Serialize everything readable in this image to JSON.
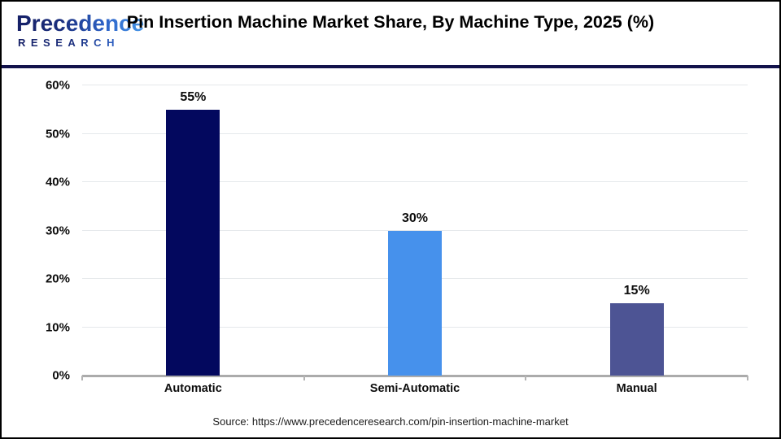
{
  "header": {
    "logo": {
      "name": "Precedence",
      "subname": "RESEARCH"
    },
    "title": "Pin Insertion Machine Market Share, By Machine Type, 2025 (%)"
  },
  "chart_data": {
    "type": "bar",
    "title": "Pin Insertion Machine Market Share, By Machine Type, 2025 (%)",
    "categories": [
      "Automatic",
      "Semi-Automatic",
      "Manual"
    ],
    "values": [
      55,
      30,
      15
    ],
    "value_labels": [
      "55%",
      "30%",
      "15%"
    ],
    "bar_colors": [
      "#03085e",
      "#4691ec",
      "#4d5494"
    ],
    "xlabel": "",
    "ylabel": "",
    "ylim": [
      0,
      60
    ],
    "yticks": [
      0,
      10,
      20,
      30,
      40,
      50,
      60
    ],
    "ytick_suffix": "%",
    "grid": true,
    "legend": false
  },
  "footer": {
    "source": "Source: https://www.precedenceresearch.com/pin-insertion-machine-market"
  }
}
